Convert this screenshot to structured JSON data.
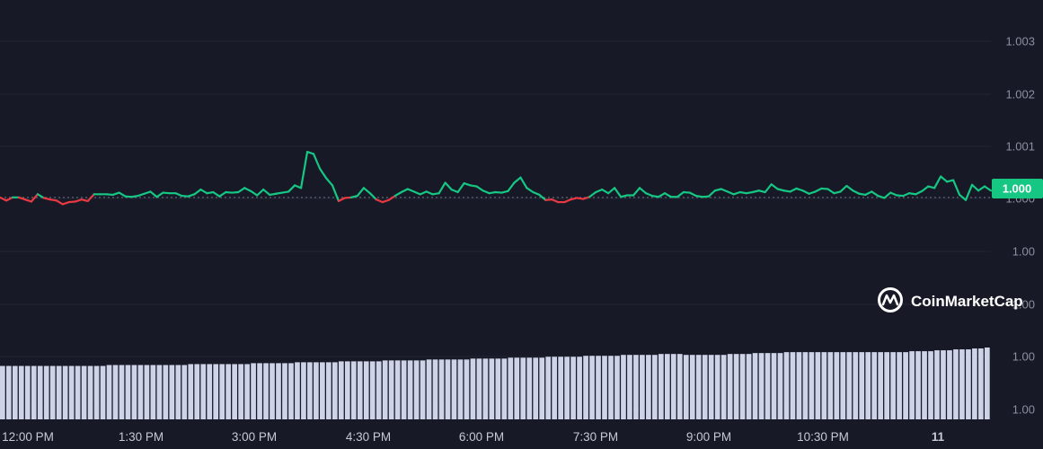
{
  "chart_data": {
    "type": "line",
    "y_ticks": [
      "1.003",
      "1.002",
      "1.001",
      "1.000",
      "1.00",
      "1.00",
      "1.00",
      "1.00"
    ],
    "x_ticks": [
      "12:00 PM",
      "1:30 PM",
      "3:00 PM",
      "4:30 PM",
      "6:00 PM",
      "7:30 PM",
      "9:00 PM",
      "10:30 PM",
      "11"
    ],
    "ylim": [
      0.9995,
      1.0035
    ],
    "reference_price": 1.00002,
    "current_price_label": "1.000",
    "series": [
      {
        "values": [
          1.00002,
          0.99996,
          1.00002,
          1.00002,
          0.99998,
          0.99994,
          1.00008,
          1.00001,
          0.99998,
          0.99996,
          0.99989,
          0.99993,
          0.99994,
          0.99998,
          0.99995,
          1.00008,
          1.00008,
          1.00008,
          1.00007,
          1.00011,
          1.00004,
          1.00003,
          1.00005,
          1.00009,
          1.00013,
          1.00003,
          1.00011,
          1.0001,
          1.0001,
          1.00005,
          1.00004,
          1.00008,
          1.00017,
          1.0001,
          1.00012,
          1.00004,
          1.00012,
          1.00011,
          1.00012,
          1.0002,
          1.00014,
          1.00006,
          1.00017,
          1.00007,
          1.00009,
          1.00011,
          1.00013,
          1.00025,
          1.0002,
          1.00089,
          1.00085,
          1.00057,
          1.00039,
          1.00025,
          0.99995,
          1.00001,
          1.00002,
          1.00005,
          1.0002,
          1.0001,
          0.99998,
          0.99993,
          0.99997,
          1.00005,
          1.00012,
          1.00018,
          1.00013,
          1.00008,
          1.00013,
          1.00008,
          1.0001,
          1.0003,
          1.00017,
          1.00012,
          1.00029,
          1.00025,
          1.00023,
          1.00015,
          1.0001,
          1.00012,
          1.00011,
          1.00014,
          1.0003,
          1.0004,
          1.0002,
          1.00012,
          1.00007,
          0.99997,
          0.99998,
          0.99993,
          0.99993,
          0.99998,
          1.00001,
          0.99999,
          1.00003,
          1.00012,
          1.00017,
          1.0001,
          1.0002,
          1.00003,
          1.00006,
          1.00006,
          1.0002,
          1.0001,
          1.00005,
          1.00003,
          1.0001,
          1.00003,
          1.00003,
          1.00012,
          1.00011,
          1.00005,
          1.00003,
          1.00004,
          1.00015,
          1.00018,
          1.00013,
          1.00008,
          1.00012,
          1.0001,
          1.00012,
          1.00015,
          1.00012,
          1.00027,
          1.00018,
          1.00015,
          1.00013,
          1.00019,
          1.00015,
          1.00009,
          1.00013,
          1.00019,
          1.00018,
          1.0001,
          1.00013,
          1.00024,
          1.00015,
          1.00009,
          1.00007,
          1.00013,
          1.00005,
          1.00001,
          1.00011,
          1.00006,
          1.00005,
          1.0001,
          1.00008,
          1.00014,
          1.00023,
          1.0002,
          1.00042,
          1.00032,
          1.00035,
          1.00007,
          0.99997,
          1.00026,
          1.00015,
          1.00023,
          1.00015
        ]
      }
    ],
    "volumes": [
      0.58,
      0.58,
      0.58,
      0.58,
      0.58,
      0.58,
      0.58,
      0.58,
      0.58,
      0.58,
      0.58,
      0.58,
      0.58,
      0.58,
      0.58,
      0.58,
      0.58,
      0.59,
      0.59,
      0.59,
      0.59,
      0.59,
      0.59,
      0.59,
      0.59,
      0.59,
      0.59,
      0.59,
      0.59,
      0.59,
      0.6,
      0.6,
      0.6,
      0.6,
      0.6,
      0.6,
      0.6,
      0.6,
      0.6,
      0.6,
      0.61,
      0.61,
      0.61,
      0.61,
      0.61,
      0.61,
      0.61,
      0.62,
      0.62,
      0.62,
      0.62,
      0.62,
      0.62,
      0.62,
      0.63,
      0.63,
      0.63,
      0.63,
      0.63,
      0.63,
      0.63,
      0.64,
      0.64,
      0.64,
      0.64,
      0.64,
      0.64,
      0.64,
      0.65,
      0.65,
      0.65,
      0.65,
      0.65,
      0.65,
      0.65,
      0.66,
      0.66,
      0.66,
      0.66,
      0.66,
      0.66,
      0.67,
      0.67,
      0.67,
      0.67,
      0.67,
      0.67,
      0.68,
      0.68,
      0.68,
      0.68,
      0.68,
      0.68,
      0.69,
      0.69,
      0.69,
      0.69,
      0.69,
      0.69,
      0.7,
      0.7,
      0.7,
      0.7,
      0.7,
      0.7,
      0.71,
      0.71,
      0.71,
      0.71,
      0.7,
      0.7,
      0.7,
      0.7,
      0.7,
      0.7,
      0.7,
      0.71,
      0.71,
      0.71,
      0.71,
      0.72,
      0.72,
      0.72,
      0.72,
      0.72,
      0.73,
      0.73,
      0.73,
      0.73,
      0.73,
      0.73,
      0.73,
      0.73,
      0.73,
      0.73,
      0.73,
      0.73,
      0.73,
      0.73,
      0.73,
      0.73,
      0.73,
      0.73,
      0.73,
      0.73,
      0.74,
      0.74,
      0.74,
      0.74,
      0.75,
      0.75,
      0.75,
      0.76,
      0.76,
      0.76,
      0.77,
      0.77,
      0.78
    ],
    "colors": {
      "up": "#16c784",
      "down": "#ea3943",
      "volume": "#cfd3e8",
      "background": "#171a26",
      "grid": "#222634"
    }
  },
  "watermark": {
    "text": "CoinMarketCap",
    "icon": "coinmarketcap-logo-icon"
  }
}
